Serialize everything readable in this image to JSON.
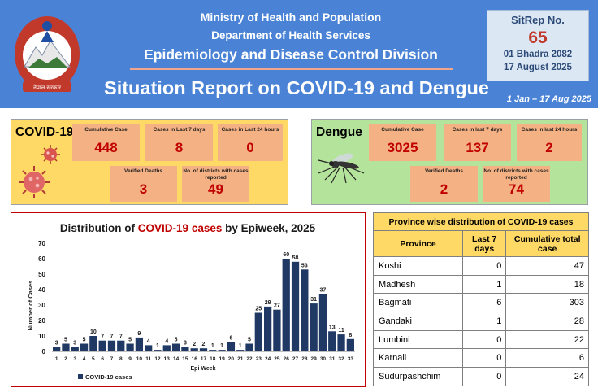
{
  "header": {
    "line1": "Ministry of Health and Population",
    "line2": "Department of Health Services",
    "line3": "Epidemiology and Disease Control Division",
    "title": "Situation Report on COVID-19 and Dengue",
    "date_range": "1 Jan – 17 Aug 2025",
    "emblem_text": "नेपाल सरकार",
    "bg_color": "#4a83d5"
  },
  "sitrep": {
    "label": "SitRep No.",
    "number": "65",
    "nepali_date": "01 Bhadra 2082",
    "date": "17 August 2025"
  },
  "covid": {
    "title": "COVID-19",
    "icon": "virus-icon",
    "cumulative": {
      "label": "Cumulative Case",
      "value": "448"
    },
    "last7": {
      "label": "Cases in Last 7 days",
      "value": "8"
    },
    "last24": {
      "label": "Cases in Last 24 hours",
      "value": "0"
    },
    "deaths": {
      "label": "Verified Deaths",
      "value": "3"
    },
    "districts": {
      "label": "No. of districts with cases reported",
      "value": "49"
    }
  },
  "dengue": {
    "title": "Dengue",
    "icon": "mosquito-icon",
    "cumulative": {
      "label": "Cumulative Case",
      "value": "3025"
    },
    "last7": {
      "label": "Cases in last 7 days",
      "value": "137"
    },
    "last24": {
      "label": "Cases in last 24 hours",
      "value": "2"
    },
    "deaths": {
      "label": "Verified Deaths",
      "value": "2"
    },
    "districts": {
      "label": "No. of districts with cases reported",
      "value": "74"
    }
  },
  "chart": {
    "title_prefix": "Distribution of ",
    "title_highlight": "COVID-19 cases",
    "title_suffix": " by Epiweek, 2025"
  },
  "chart_data": {
    "type": "bar",
    "title": "Distribution of COVID-19 cases by Epiweek, 2025",
    "xlabel": "Epi Week",
    "ylabel": "Number of Cases",
    "ylim": [
      0,
      70
    ],
    "yticks": [
      0,
      10,
      20,
      30,
      40,
      50,
      60,
      70
    ],
    "categories": [
      "1",
      "2",
      "3",
      "4",
      "5",
      "6",
      "7",
      "8",
      "9",
      "10",
      "11",
      "12",
      "13",
      "14",
      "15",
      "16",
      "17",
      "18",
      "19",
      "20",
      "21",
      "22",
      "23",
      "24",
      "25",
      "26",
      "27",
      "28",
      "29",
      "30",
      "31",
      "32",
      "33"
    ],
    "series": [
      {
        "name": "COVID-19 cases",
        "color": "#1f3864",
        "values": [
          3,
          5,
          3,
          5,
          10,
          7,
          7,
          7,
          5,
          9,
          4,
          1,
          4,
          5,
          3,
          2,
          2,
          1,
          1,
          6,
          1,
          5,
          25,
          29,
          27,
          60,
          58,
          53,
          31,
          37,
          13,
          11,
          8
        ]
      }
    ],
    "legend": "bottom-left",
    "grid": false,
    "data_labels": true
  },
  "province_table": {
    "caption": "Province wise distribution of COVID-19 cases",
    "headers": [
      "Province",
      "Last 7 days",
      "Cumulative total case"
    ],
    "rows": [
      [
        "Koshi",
        "0",
        "47"
      ],
      [
        "Madhesh",
        "1",
        "18"
      ],
      [
        "Bagmati",
        "6",
        "303"
      ],
      [
        "Gandaki",
        "1",
        "28"
      ],
      [
        "Lumbini",
        "0",
        "22"
      ],
      [
        "Karnali",
        "0",
        "6"
      ],
      [
        "Sudurpashchim",
        "0",
        "24"
      ]
    ]
  }
}
